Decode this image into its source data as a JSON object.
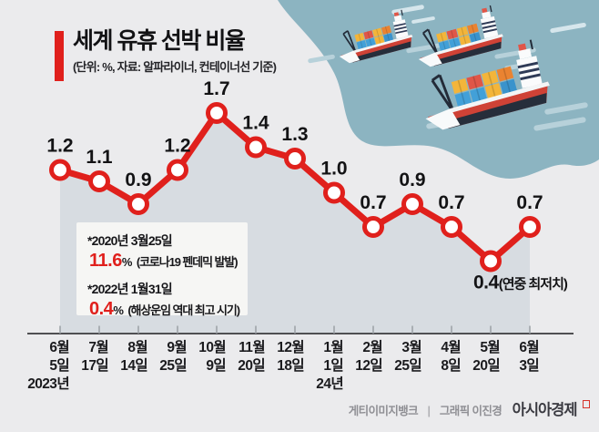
{
  "header": {
    "title": "세계 유휴 선박 비율",
    "subtitle": "(단위: %, 자료: 알파라이너, 컨테이너선 기준)"
  },
  "chart_data": {
    "type": "line",
    "title": "세계 유휴 선박 비율",
    "unit": "%",
    "source": "알파라이너, 컨테이너선 기준",
    "categories": [
      {
        "month": "6월",
        "day": "5일",
        "year": "2023년"
      },
      {
        "month": "7월",
        "day": "17일"
      },
      {
        "month": "8월",
        "day": "14일"
      },
      {
        "month": "9월",
        "day": "25일"
      },
      {
        "month": "10월",
        "day": "9일"
      },
      {
        "month": "11월",
        "day": "20일"
      },
      {
        "month": "12월",
        "day": "18일"
      },
      {
        "month": "1월",
        "day": "1일",
        "year": "24년"
      },
      {
        "month": "2월",
        "day": "12일"
      },
      {
        "month": "3월",
        "day": "25일"
      },
      {
        "month": "4월",
        "day": "8일"
      },
      {
        "month": "5월",
        "day": "20일"
      },
      {
        "month": "6월",
        "day": "3일"
      }
    ],
    "values": [
      1.2,
      1.1,
      0.9,
      1.2,
      1.7,
      1.4,
      1.3,
      1.0,
      0.7,
      0.9,
      0.7,
      0.4,
      0.7
    ],
    "min_point_suffix": "(연중 최저치)",
    "ylim": [
      0.4,
      1.7
    ],
    "grid": false,
    "legend": "none",
    "line_color": "#e0201c",
    "marker_fill": "#ffffff",
    "area_color": "#d7dce1"
  },
  "annotation_box": {
    "entries": [
      {
        "date": "*2020년 3월25일",
        "value": "11.6",
        "unit": "%",
        "desc": "(코로나19 펜데믹 발발)"
      },
      {
        "date": "*2022년 1월31일",
        "value": "0.4",
        "unit": "%",
        "desc": "(해상운임 역대 최고 시기)"
      }
    ]
  },
  "footer": {
    "credit": "게티이미지뱅크",
    "divider": "|",
    "graphic": "그래픽 이진경",
    "brand": "아시아경제"
  },
  "colors": {
    "background": "#ebebed",
    "accent_red": "#e0201c",
    "area_fill": "#d7dce1",
    "teal_blob": "#8cb4c1",
    "streak": "#b7d1da",
    "axis": "#4f4f52",
    "tick": "#9aa0a4",
    "label_dark": "#131315",
    "footer_gray": "#8f8f94"
  }
}
